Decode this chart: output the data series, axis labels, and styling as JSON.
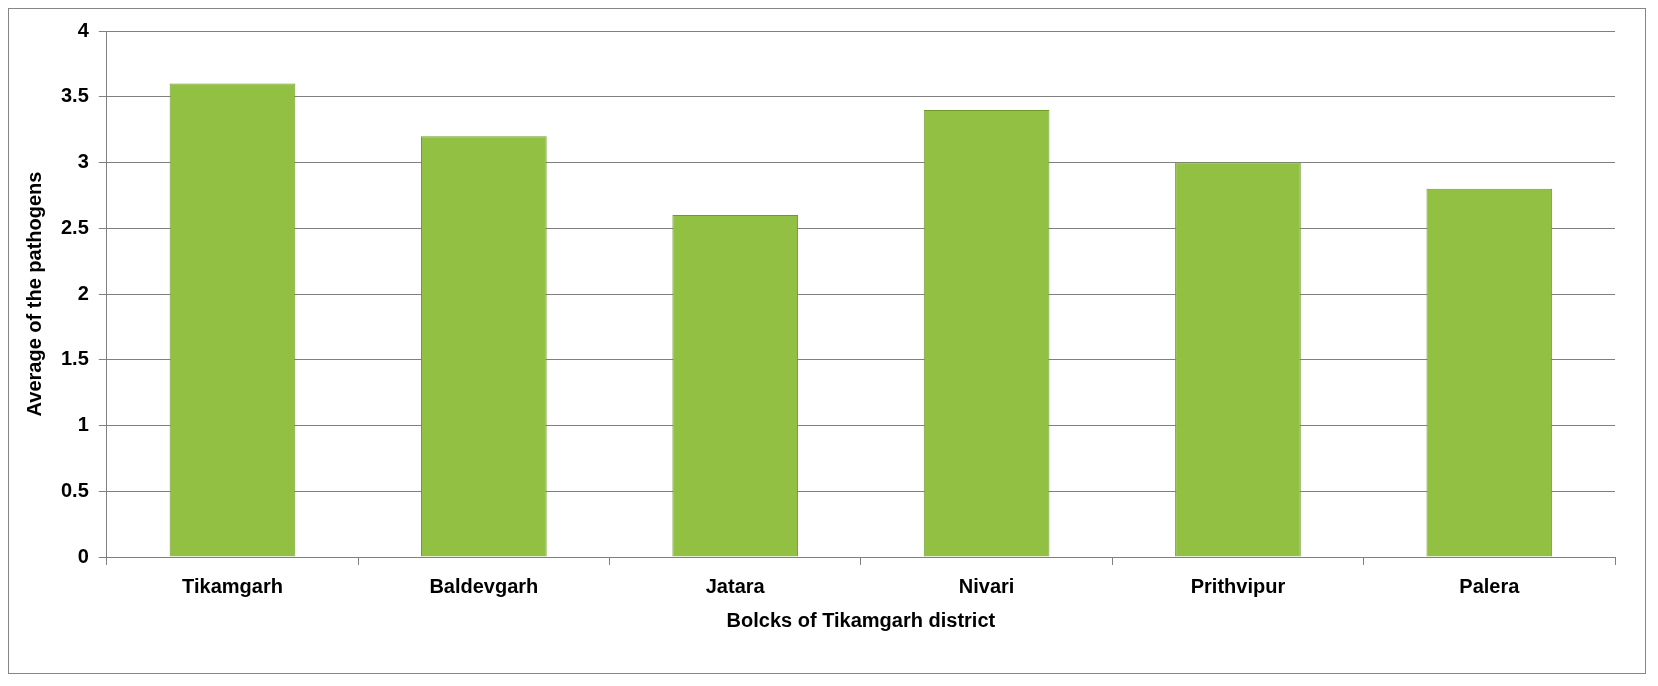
{
  "chart_data": {
    "type": "bar",
    "xlabel": "Bolcks of Tikamgarh district",
    "ylabel": "Average of the pathogens",
    "categories": [
      "Tikamgarh",
      "Baldevgarh",
      "Jatara",
      "Nivari",
      "Prithvipur",
      "Palera"
    ],
    "values": [
      3.6,
      3.2,
      2.6,
      3.4,
      3.0,
      2.8
    ],
    "color": "#92c043",
    "ylim": [
      0,
      4
    ],
    "yticks": [
      0,
      0.5,
      1,
      1.5,
      2,
      2.5,
      3,
      3.5,
      4
    ],
    "grid": "y",
    "legend": false
  }
}
